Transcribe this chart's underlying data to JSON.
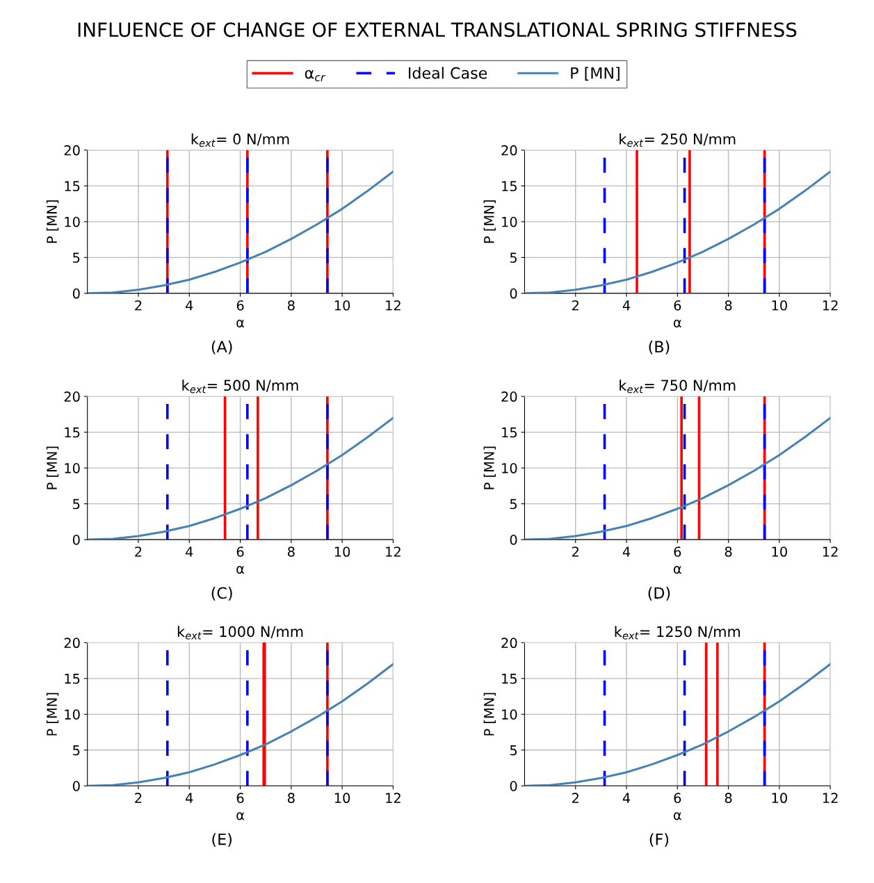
{
  "chart_data": [
    {
      "type": "line",
      "title": "k$_{ext}$= 0 N/mm",
      "xlabel": "α",
      "ylabel": "P [MN]",
      "annotations": [
        "INFLUENCE OF CHANGE OF EXTERNAL TRANSLATIONAL SPRING STIFFNESS",
        "(A)"
      ],
      "legend": "top",
      "grid": true,
      "xlim": [
        0,
        12
      ],
      "xticks": [
        2,
        4,
        6,
        8,
        10,
        12
      ],
      "ylim": [
        0,
        20
      ],
      "yticks": [
        0,
        5,
        10,
        15,
        20
      ],
      "line_style": "solid",
      "marker": "none",
      "x": [
        0,
        1,
        2,
        3,
        4,
        5,
        6,
        7,
        8,
        9,
        10,
        11,
        12
      ],
      "series": [
        {
          "name": "P [MN]",
          "color": "#4682b4",
          "values": [
            0,
            0.1,
            0.5,
            1.1,
            1.9,
            3.0,
            4.3,
            5.8,
            7.6,
            9.6,
            11.8,
            14.3,
            17.0
          ]
        }
      ],
      "ref_lines": [
        {
          "axis": "x",
          "value": 3.14,
          "label": "α$_{cr}$",
          "color": "#ff0000",
          "line_style": "solid"
        },
        {
          "axis": "x",
          "value": 6.28,
          "color": "#ff0000",
          "line_style": "solid"
        },
        {
          "axis": "x",
          "value": 9.42,
          "color": "#ff0000",
          "line_style": "solid"
        },
        {
          "axis": "x",
          "value": 3.14,
          "label": "Ideal Case",
          "color": "#0000ff",
          "line_style": "dashed"
        },
        {
          "axis": "x",
          "value": 6.28,
          "color": "#0000ff",
          "line_style": "dashed"
        },
        {
          "axis": "x",
          "value": 9.42,
          "color": "#0000ff",
          "line_style": "dashed"
        }
      ]
    },
    {
      "type": "line",
      "title": "k$_{ext}$= 250 N/mm",
      "xlabel": "α",
      "ylabel": "P [MN]",
      "annotations": [
        "(B)"
      ],
      "grid": true,
      "xlim": [
        0,
        12
      ],
      "xticks": [
        2,
        4,
        6,
        8,
        10,
        12
      ],
      "ylim": [
        0,
        20
      ],
      "yticks": [
        0,
        5,
        10,
        15,
        20
      ],
      "line_style": "solid",
      "marker": "none",
      "x": [
        0,
        1,
        2,
        3,
        4,
        5,
        6,
        7,
        8,
        9,
        10,
        11,
        12
      ],
      "series": [
        {
          "color": "#4682b4",
          "values": [
            0,
            0.1,
            0.5,
            1.1,
            1.9,
            3.0,
            4.3,
            5.8,
            7.6,
            9.6,
            11.8,
            14.3,
            17.0
          ]
        }
      ],
      "ref_lines": [
        {
          "axis": "x",
          "value": 4.41,
          "color": "#ff0000",
          "line_style": "solid"
        },
        {
          "axis": "x",
          "value": 6.48,
          "color": "#ff0000",
          "line_style": "solid"
        },
        {
          "axis": "x",
          "value": 9.42,
          "color": "#ff0000",
          "line_style": "solid"
        },
        {
          "axis": "x",
          "value": 3.14,
          "color": "#0000ff",
          "line_style": "dashed"
        },
        {
          "axis": "x",
          "value": 6.28,
          "color": "#0000ff",
          "line_style": "dashed"
        },
        {
          "axis": "x",
          "value": 9.42,
          "color": "#0000ff",
          "line_style": "dashed"
        }
      ]
    },
    {
      "type": "line",
      "title": "k$_{ext}$= 500 N/mm",
      "xlabel": "α",
      "ylabel": "P [MN]",
      "annotations": [
        "(C)"
      ],
      "grid": true,
      "xlim": [
        0,
        12
      ],
      "xticks": [
        2,
        4,
        6,
        8,
        10,
        12
      ],
      "ylim": [
        0,
        20
      ],
      "yticks": [
        0,
        5,
        10,
        15,
        20
      ],
      "line_style": "solid",
      "marker": "none",
      "x": [
        0,
        1,
        2,
        3,
        4,
        5,
        6,
        7,
        8,
        9,
        10,
        11,
        12
      ],
      "series": [
        {
          "color": "#4682b4",
          "values": [
            0,
            0.1,
            0.5,
            1.1,
            1.9,
            3.0,
            4.3,
            5.8,
            7.6,
            9.6,
            11.8,
            14.3,
            17.0
          ]
        }
      ],
      "ref_lines": [
        {
          "axis": "x",
          "value": 5.4,
          "color": "#ff0000",
          "line_style": "solid"
        },
        {
          "axis": "x",
          "value": 6.69,
          "color": "#ff0000",
          "line_style": "solid"
        },
        {
          "axis": "x",
          "value": 9.42,
          "color": "#ff0000",
          "line_style": "solid"
        },
        {
          "axis": "x",
          "value": 3.14,
          "color": "#0000ff",
          "line_style": "dashed"
        },
        {
          "axis": "x",
          "value": 6.28,
          "color": "#0000ff",
          "line_style": "dashed"
        },
        {
          "axis": "x",
          "value": 9.42,
          "color": "#0000ff",
          "line_style": "dashed"
        }
      ]
    },
    {
      "type": "line",
      "title": "k$_{ext}$= 750 N/mm",
      "xlabel": "α",
      "ylabel": "P [MN]",
      "annotations": [
        "(D)"
      ],
      "grid": true,
      "xlim": [
        0,
        12
      ],
      "xticks": [
        2,
        4,
        6,
        8,
        10,
        12
      ],
      "ylim": [
        0,
        20
      ],
      "yticks": [
        0,
        5,
        10,
        15,
        20
      ],
      "line_style": "solid",
      "marker": "none",
      "x": [
        0,
        1,
        2,
        3,
        4,
        5,
        6,
        7,
        8,
        9,
        10,
        11,
        12
      ],
      "series": [
        {
          "color": "#4682b4",
          "values": [
            0,
            0.1,
            0.5,
            1.1,
            1.9,
            3.0,
            4.3,
            5.8,
            7.6,
            9.6,
            11.8,
            14.3,
            17.0
          ]
        }
      ],
      "ref_lines": [
        {
          "axis": "x",
          "value": 6.16,
          "color": "#ff0000",
          "line_style": "solid"
        },
        {
          "axis": "x",
          "value": 6.85,
          "color": "#ff0000",
          "line_style": "solid"
        },
        {
          "axis": "x",
          "value": 9.42,
          "color": "#ff0000",
          "line_style": "solid"
        },
        {
          "axis": "x",
          "value": 3.14,
          "color": "#0000ff",
          "line_style": "dashed"
        },
        {
          "axis": "x",
          "value": 6.28,
          "color": "#0000ff",
          "line_style": "dashed"
        },
        {
          "axis": "x",
          "value": 9.42,
          "color": "#0000ff",
          "line_style": "dashed"
        }
      ]
    },
    {
      "type": "line",
      "title": "k$_{ext}$= 1000 N/mm",
      "xlabel": "α",
      "ylabel": "P [MN]",
      "annotations": [
        "(E)"
      ],
      "grid": true,
      "xlim": [
        0,
        12
      ],
      "xticks": [
        2,
        4,
        6,
        8,
        10,
        12
      ],
      "ylim": [
        0,
        20
      ],
      "yticks": [
        0,
        5,
        10,
        15,
        20
      ],
      "line_style": "solid",
      "marker": "none",
      "x": [
        0,
        1,
        2,
        3,
        4,
        5,
        6,
        7,
        8,
        9,
        10,
        11,
        12
      ],
      "series": [
        {
          "color": "#4682b4",
          "values": [
            0,
            0.1,
            0.5,
            1.1,
            1.9,
            3.0,
            4.3,
            5.8,
            7.6,
            9.6,
            11.8,
            14.3,
            17.0
          ]
        }
      ],
      "ref_lines": [
        {
          "axis": "x",
          "value": 6.92,
          "color": "#ff0000",
          "line_style": "solid"
        },
        {
          "axis": "x",
          "value": 6.96,
          "color": "#ff0000",
          "line_style": "solid"
        },
        {
          "axis": "x",
          "value": 9.42,
          "color": "#ff0000",
          "line_style": "solid"
        },
        {
          "axis": "x",
          "value": 3.14,
          "color": "#0000ff",
          "line_style": "dashed"
        },
        {
          "axis": "x",
          "value": 6.28,
          "color": "#0000ff",
          "line_style": "dashed"
        },
        {
          "axis": "x",
          "value": 9.42,
          "color": "#0000ff",
          "line_style": "dashed"
        }
      ]
    },
    {
      "type": "line",
      "title": "k$_{ext}$= 1250 N/mm",
      "xlabel": "α",
      "ylabel": "P [MN]",
      "annotations": [
        "(F)"
      ],
      "grid": true,
      "xlim": [
        0,
        12
      ],
      "xticks": [
        2,
        4,
        6,
        8,
        10,
        12
      ],
      "ylim": [
        0,
        20
      ],
      "yticks": [
        0,
        5,
        10,
        15,
        20
      ],
      "line_style": "solid",
      "marker": "none",
      "x": [
        0,
        1,
        2,
        3,
        4,
        5,
        6,
        7,
        8,
        9,
        10,
        11,
        12
      ],
      "series": [
        {
          "color": "#4682b4",
          "values": [
            0,
            0.1,
            0.5,
            1.1,
            1.9,
            3.0,
            4.3,
            5.8,
            7.6,
            9.6,
            11.8,
            14.3,
            17.0
          ]
        }
      ],
      "ref_lines": [
        {
          "axis": "x",
          "value": 7.13,
          "color": "#ff0000",
          "line_style": "solid"
        },
        {
          "axis": "x",
          "value": 7.57,
          "color": "#ff0000",
          "line_style": "solid"
        },
        {
          "axis": "x",
          "value": 9.42,
          "color": "#ff0000",
          "line_style": "solid"
        },
        {
          "axis": "x",
          "value": 3.14,
          "color": "#0000ff",
          "line_style": "dashed"
        },
        {
          "axis": "x",
          "value": 6.28,
          "color": "#0000ff",
          "line_style": "dashed"
        },
        {
          "axis": "x",
          "value": 9.42,
          "color": "#0000ff",
          "line_style": "dashed"
        }
      ]
    }
  ]
}
